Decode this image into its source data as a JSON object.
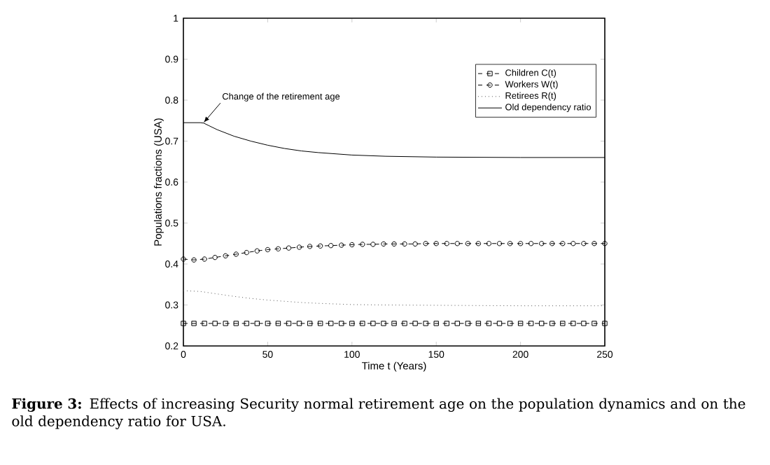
{
  "chart_data": {
    "type": "line",
    "xlabel": "Time t (Years)",
    "ylabel": "Populations fractions (USA)",
    "xlim": [
      0,
      250
    ],
    "ylim": [
      0.2,
      1
    ],
    "xticks": [
      0,
      50,
      100,
      150,
      200,
      250
    ],
    "yticks": [
      0.2,
      0.3,
      0.4,
      0.5,
      0.6,
      0.7,
      0.8,
      0.9,
      1
    ],
    "grid": false,
    "legend": "top right",
    "annotations": [
      {
        "text": "Change of the retirement age",
        "x": 12,
        "y": 0.745
      },
      "**Figure 3:** Effects of increasing Security normal retirement age on the population dynamics and on the old dependency ratio for USA."
    ],
    "series": [
      {
        "name": "Children C(t)",
        "color": "#000000",
        "marker": "square",
        "line_style": "dashed",
        "x": [
          0,
          6.25,
          12.5,
          18.75,
          25,
          31.25,
          37.5,
          43.75,
          50,
          56.25,
          62.5,
          68.75,
          75,
          81.25,
          87.5,
          93.75,
          100,
          106.25,
          112.5,
          118.75,
          125,
          131.25,
          137.5,
          143.75,
          150,
          156.25,
          162.5,
          168.75,
          175,
          181.25,
          187.5,
          193.75,
          200,
          206.25,
          212.5,
          218.75,
          225,
          231.25,
          237.5,
          243.75,
          250
        ],
        "values": [
          0.255,
          0.255,
          0.255,
          0.255,
          0.255,
          0.255,
          0.255,
          0.255,
          0.255,
          0.255,
          0.255,
          0.255,
          0.255,
          0.255,
          0.255,
          0.255,
          0.255,
          0.255,
          0.255,
          0.255,
          0.255,
          0.255,
          0.255,
          0.255,
          0.255,
          0.255,
          0.255,
          0.255,
          0.255,
          0.255,
          0.255,
          0.255,
          0.255,
          0.255,
          0.255,
          0.255,
          0.255,
          0.255,
          0.255,
          0.255,
          0.255
        ]
      },
      {
        "name": "Workers W(t)",
        "color": "#000000",
        "marker": "circle",
        "line_style": "dashed",
        "x": [
          0,
          6.25,
          12.5,
          18.75,
          25,
          31.25,
          37.5,
          43.75,
          50,
          56.25,
          62.5,
          68.75,
          75,
          81.25,
          87.5,
          93.75,
          100,
          106.25,
          112.5,
          118.75,
          125,
          131.25,
          137.5,
          143.75,
          150,
          156.25,
          162.5,
          168.75,
          175,
          181.25,
          187.5,
          193.75,
          200,
          206.25,
          212.5,
          218.75,
          225,
          231.25,
          237.5,
          243.75,
          250
        ],
        "values": [
          0.412,
          0.41,
          0.412,
          0.416,
          0.42,
          0.424,
          0.428,
          0.432,
          0.435,
          0.437,
          0.439,
          0.441,
          0.443,
          0.444,
          0.445,
          0.446,
          0.447,
          0.448,
          0.448,
          0.449,
          0.449,
          0.449,
          0.449,
          0.45,
          0.45,
          0.45,
          0.45,
          0.45,
          0.45,
          0.45,
          0.45,
          0.45,
          0.45,
          0.45,
          0.45,
          0.45,
          0.45,
          0.45,
          0.45,
          0.45,
          0.45
        ]
      },
      {
        "name": "Retirees R(t)",
        "color": "#555555",
        "marker": "none",
        "line_style": "dotted",
        "x": [
          0,
          5,
          10,
          15,
          20,
          30,
          40,
          50,
          60,
          70,
          80,
          100,
          120,
          200,
          250
        ],
        "values": [
          0.335,
          0.334,
          0.333,
          0.33,
          0.327,
          0.321,
          0.316,
          0.312,
          0.309,
          0.306,
          0.304,
          0.301,
          0.3,
          0.298,
          0.298
        ]
      },
      {
        "name": "Old dependency ratio",
        "color": "#000000",
        "marker": "none",
        "line_style": "solid",
        "x": [
          0,
          5,
          10,
          12,
          15,
          20,
          30,
          40,
          50,
          60,
          70,
          80,
          100,
          120,
          150,
          200,
          250
        ],
        "values": [
          0.745,
          0.745,
          0.745,
          0.744,
          0.738,
          0.728,
          0.712,
          0.7,
          0.69,
          0.682,
          0.676,
          0.672,
          0.666,
          0.663,
          0.661,
          0.66,
          0.66
        ]
      }
    ]
  }
}
